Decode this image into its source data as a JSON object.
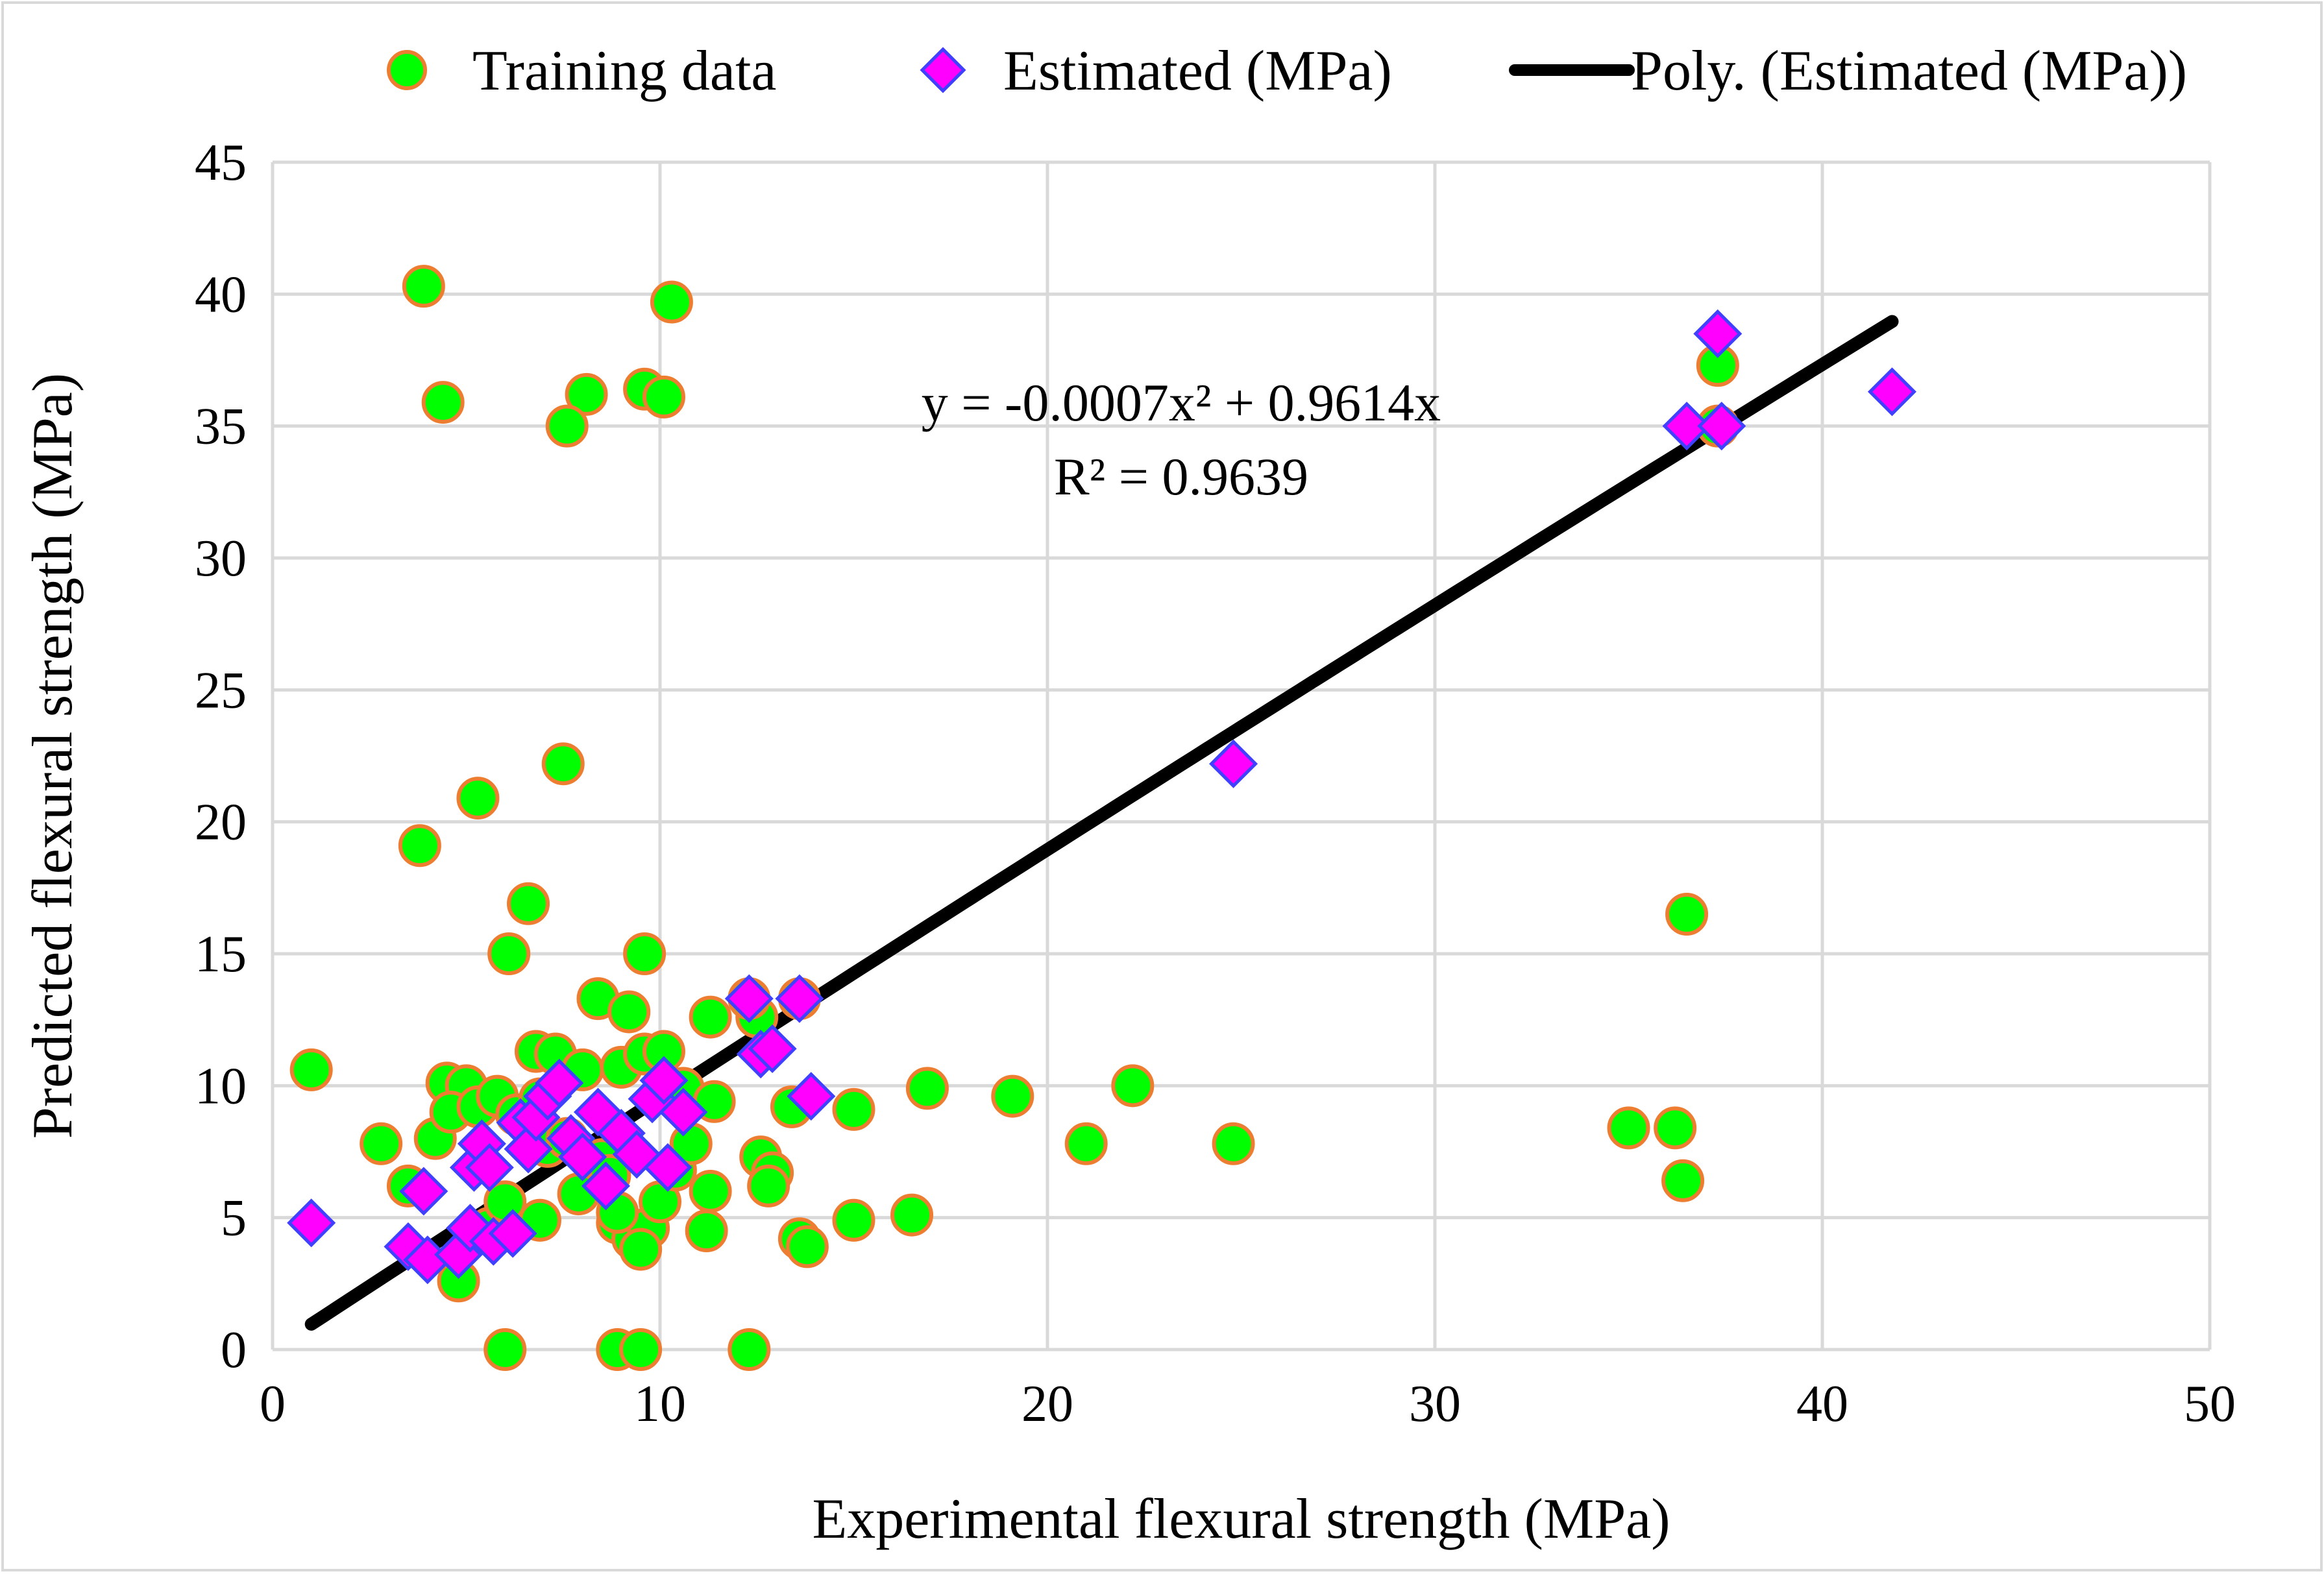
{
  "chart_data": {
    "type": "scatter",
    "title": "",
    "xlabel": "Experimental flexural strength (MPa)",
    "ylabel": "Predicted flexural strength (MPa)",
    "xlim": [
      0,
      50
    ],
    "ylim": [
      0,
      45
    ],
    "x_ticks": [
      "0",
      "10",
      "20",
      "30",
      "40",
      "50"
    ],
    "y_ticks": [
      "0",
      "5",
      "10",
      "15",
      "20",
      "25",
      "30",
      "35",
      "40",
      "45"
    ],
    "grid": true,
    "legend": {
      "position": "top",
      "entries": [
        "Training data",
        "Estimated (MPa)",
        "Poly. (Estimated (MPa))"
      ]
    },
    "colors": {
      "training_fill": "#00ff00",
      "training_edge": "#ed7d31",
      "estimated_fill": "#ff00ff",
      "estimated_edge": "#4040ff",
      "trendline": "#000000",
      "grid": "#d9d9d9"
    },
    "annotations": [
      "y = -0.0007x² + 0.9614x",
      "R² = 0.9639"
    ],
    "series": [
      {
        "name": "Training data",
        "marker": "circle",
        "points": [
          [
            3.9,
            40.3
          ],
          [
            10.3,
            39.7
          ],
          [
            4.4,
            35.9
          ],
          [
            9.6,
            36.4
          ],
          [
            10.1,
            36.1
          ],
          [
            8.1,
            36.2
          ],
          [
            7.6,
            35.0
          ],
          [
            37.3,
            37.3
          ],
          [
            37.3,
            35.0
          ],
          [
            7.5,
            22.2
          ],
          [
            5.3,
            20.9
          ],
          [
            3.8,
            19.1
          ],
          [
            6.6,
            16.9
          ],
          [
            36.5,
            16.5
          ],
          [
            6.1,
            15.0
          ],
          [
            9.6,
            15.0
          ],
          [
            8.4,
            13.3
          ],
          [
            9.2,
            12.8
          ],
          [
            11.3,
            12.6
          ],
          [
            12.5,
            12.6
          ],
          [
            13.6,
            13.3
          ],
          [
            12.3,
            13.3
          ],
          [
            1.0,
            10.6
          ],
          [
            4.5,
            10.1
          ],
          [
            5.0,
            10.0
          ],
          [
            6.8,
            11.3
          ],
          [
            7.3,
            11.2
          ],
          [
            8.0,
            10.6
          ],
          [
            9.0,
            10.7
          ],
          [
            9.6,
            11.2
          ],
          [
            10.1,
            11.3
          ],
          [
            10.6,
            9.9
          ],
          [
            11.4,
            9.4
          ],
          [
            2.8,
            7.8
          ],
          [
            3.5,
            6.2
          ],
          [
            4.2,
            8.0
          ],
          [
            4.6,
            9.0
          ],
          [
            5.3,
            9.2
          ],
          [
            5.8,
            9.6
          ],
          [
            6.3,
            8.9
          ],
          [
            6.9,
            9.5
          ],
          [
            7.1,
            7.7
          ],
          [
            7.6,
            8.0
          ],
          [
            7.9,
            5.9
          ],
          [
            8.5,
            7.2
          ],
          [
            8.9,
            4.8
          ],
          [
            9.3,
            4.2
          ],
          [
            9.7,
            4.6
          ],
          [
            10.0,
            5.6
          ],
          [
            10.4,
            6.8
          ],
          [
            10.8,
            7.8
          ],
          [
            11.2,
            4.5
          ],
          [
            11.3,
            6.0
          ],
          [
            12.6,
            7.3
          ],
          [
            12.9,
            6.7
          ],
          [
            12.8,
            6.2
          ],
          [
            13.4,
            9.2
          ],
          [
            13.6,
            4.2
          ],
          [
            13.8,
            3.9
          ],
          [
            15.0,
            4.9
          ],
          [
            15.0,
            9.1
          ],
          [
            16.5,
            5.1
          ],
          [
            16.9,
            9.9
          ],
          [
            19.1,
            9.6
          ],
          [
            21.0,
            7.8
          ],
          [
            22.2,
            10.0
          ],
          [
            24.8,
            7.8
          ],
          [
            35.0,
            8.4
          ],
          [
            36.2,
            8.4
          ],
          [
            36.4,
            6.4
          ],
          [
            4.8,
            2.6
          ],
          [
            5.6,
            4.6
          ],
          [
            6.0,
            5.6
          ],
          [
            6.9,
            4.9
          ],
          [
            8.7,
            6.6
          ],
          [
            9.5,
            3.8
          ],
          [
            8.9,
            5.2
          ],
          [
            6.0,
            0.0
          ],
          [
            8.9,
            0.0
          ],
          [
            9.5,
            0.0
          ],
          [
            12.3,
            0.0
          ]
        ]
      },
      {
        "name": "Estimated (MPa)",
        "marker": "diamond",
        "points": [
          [
            1.0,
            4.8
          ],
          [
            3.5,
            3.9
          ],
          [
            3.9,
            6.0
          ],
          [
            4.0,
            3.4
          ],
          [
            4.8,
            3.6
          ],
          [
            5.1,
            4.6
          ],
          [
            5.2,
            6.9
          ],
          [
            5.4,
            7.8
          ],
          [
            5.6,
            6.9
          ],
          [
            5.7,
            4.1
          ],
          [
            6.2,
            4.4
          ],
          [
            6.4,
            8.6
          ],
          [
            6.6,
            7.6
          ],
          [
            6.8,
            8.8
          ],
          [
            7.1,
            9.6
          ],
          [
            7.4,
            10.1
          ],
          [
            7.7,
            8.0
          ],
          [
            8.0,
            7.3
          ],
          [
            8.4,
            9.0
          ],
          [
            8.6,
            6.2
          ],
          [
            9.0,
            8.2
          ],
          [
            9.4,
            7.4
          ],
          [
            9.8,
            9.5
          ],
          [
            10.1,
            10.2
          ],
          [
            10.2,
            6.9
          ],
          [
            10.6,
            9.0
          ],
          [
            12.3,
            13.3
          ],
          [
            12.6,
            11.2
          ],
          [
            12.9,
            11.4
          ],
          [
            13.6,
            13.3
          ],
          [
            13.9,
            9.6
          ],
          [
            24.8,
            22.2
          ],
          [
            36.5,
            35.0
          ],
          [
            37.3,
            38.5
          ],
          [
            37.4,
            35.0
          ],
          [
            41.8,
            36.3
          ]
        ]
      }
    ],
    "trendline": {
      "name": "Poly. (Estimated (MPa))",
      "a2": -0.0007,
      "a1": 0.9614,
      "a0": 0,
      "x_range": [
        1.0,
        41.8
      ]
    }
  }
}
